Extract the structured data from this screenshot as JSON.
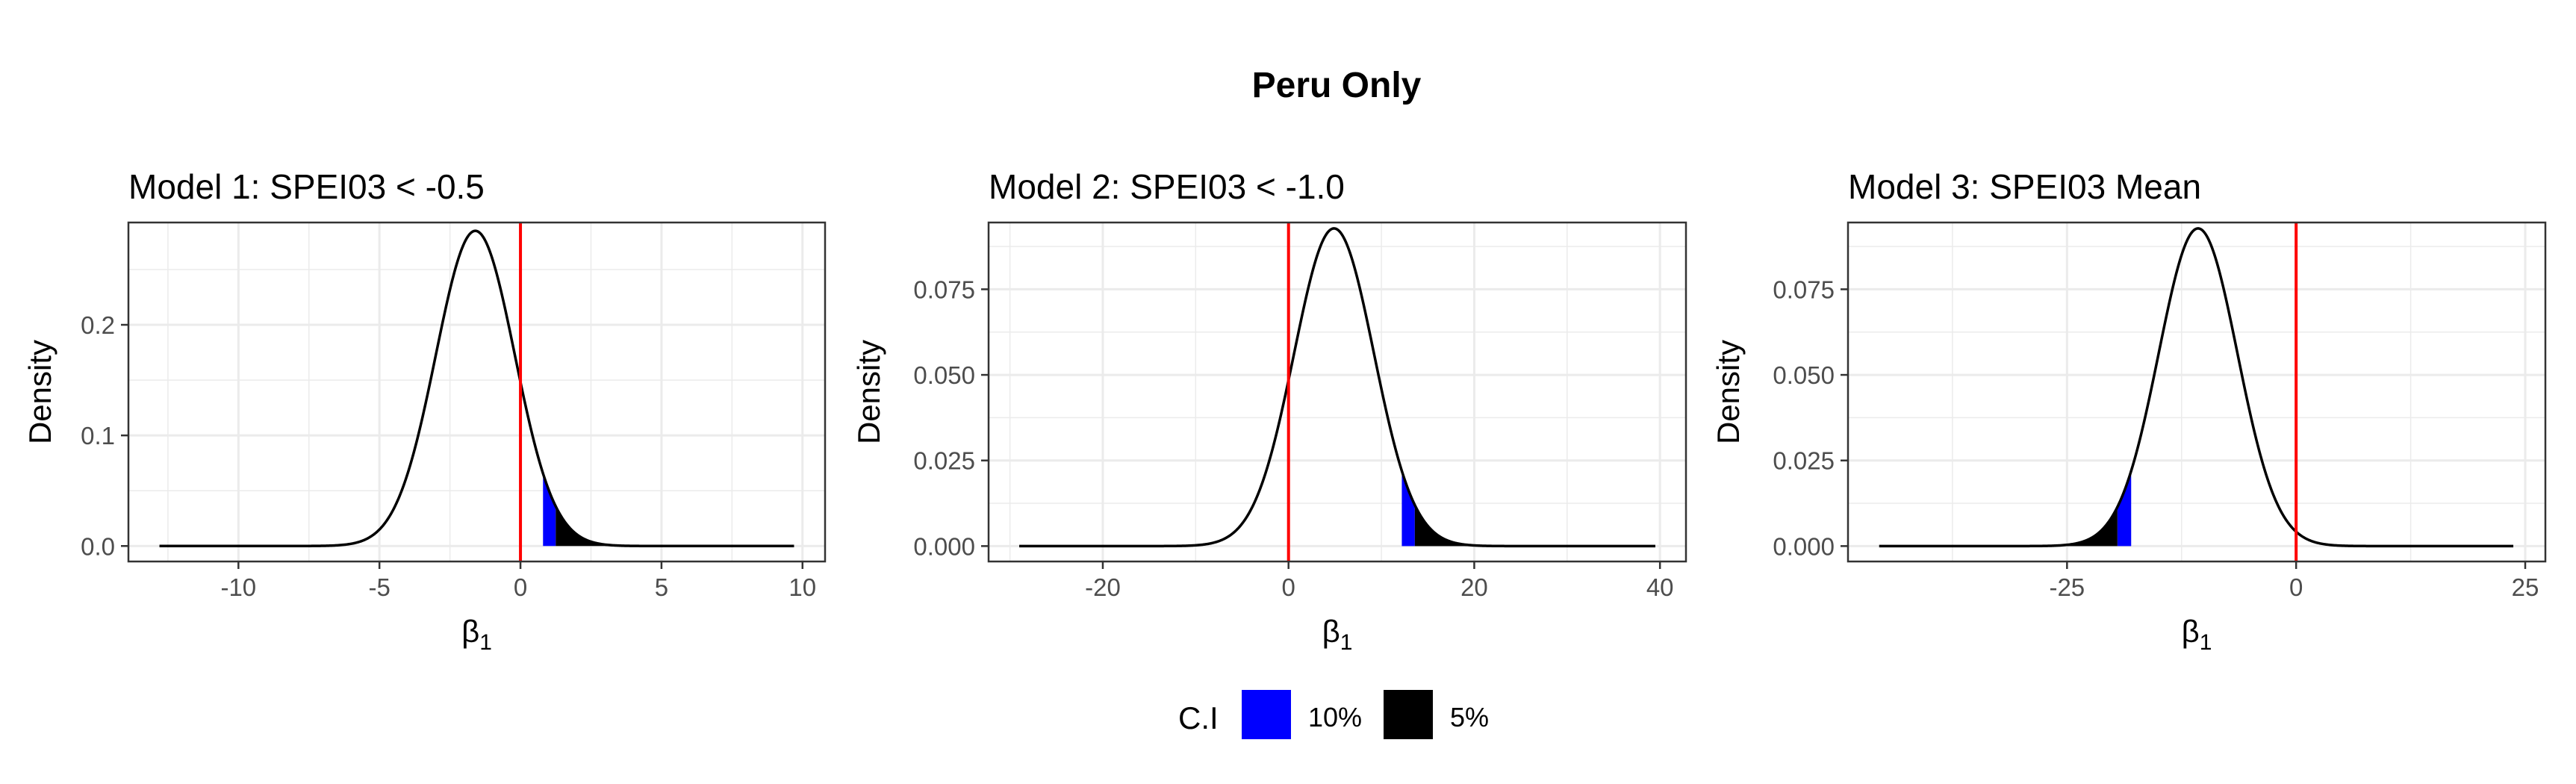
{
  "figure": {
    "title": "Peru Only"
  },
  "legend": {
    "title": "C.I",
    "entries": [
      {
        "label": "10%",
        "color": "#0000ff"
      },
      {
        "label": "5%",
        "color": "#000000"
      }
    ]
  },
  "colors": {
    "curve": "#000000",
    "reference_line": "#ff0000",
    "grid": "#ebebeb",
    "panel_border": "#333333"
  },
  "chart_data": [
    {
      "type": "area",
      "title": "Model 1: SPEI03 < -0.5",
      "xlabel_main": "β",
      "xlabel_sub": "1",
      "ylabel": "Density",
      "distribution": {
        "mean": -1.6,
        "sd": 1.4
      },
      "x_range": [
        -12.8,
        9.7
      ],
      "xlim": [
        -13.9,
        10.8
      ],
      "ylim": [
        -0.014,
        0.2925
      ],
      "xticks": [
        -10,
        -5,
        0,
        5,
        10
      ],
      "xtick_labels": [
        "-10",
        "-5",
        "0",
        "5",
        "10"
      ],
      "yticks": [
        0.0,
        0.1,
        0.2
      ],
      "ytick_labels": [
        "0.0",
        "0.1",
        "0.2"
      ],
      "reference_line_x": 0,
      "ci_10_region": [
        0.8,
        1.25
      ],
      "ci_5_region": [
        1.25,
        9.7
      ],
      "grid": true
    },
    {
      "type": "area",
      "title": "Model 2: SPEI03 < -1.0",
      "xlabel_main": "β",
      "xlabel_sub": "1",
      "ylabel": "Density",
      "distribution": {
        "mean": 4.9,
        "sd": 4.3
      },
      "x_range": [
        -29,
        39.5
      ],
      "xlim": [
        -32.3,
        42.8
      ],
      "ylim": [
        -0.0045,
        0.0945
      ],
      "xticks": [
        -20,
        0,
        20,
        40
      ],
      "xtick_labels": [
        "-20",
        "0",
        "20",
        "40"
      ],
      "yticks": [
        0.0,
        0.025,
        0.05,
        0.075
      ],
      "ytick_labels": [
        "0.000",
        "0.025",
        "0.050",
        "0.075"
      ],
      "reference_line_x": 0,
      "ci_10_region": [
        12.2,
        13.6
      ],
      "ci_5_region": [
        13.6,
        39.5
      ],
      "grid": true
    },
    {
      "type": "area",
      "title": "Model 3: SPEI03 Mean",
      "xlabel_main": "β",
      "xlabel_sub": "1",
      "ylabel": "Density",
      "distribution": {
        "mean": -10.7,
        "sd": 4.3
      },
      "x_range": [
        -45.5,
        23.7
      ],
      "xlim": [
        -48.9,
        27.2
      ],
      "ylim": [
        -0.0045,
        0.0945
      ],
      "xticks": [
        -25,
        0,
        25
      ],
      "xtick_labels": [
        "-25",
        "0",
        "25"
      ],
      "yticks": [
        0.0,
        0.025,
        0.05,
        0.075
      ],
      "ytick_labels": [
        "0.000",
        "0.025",
        "0.050",
        "0.075"
      ],
      "reference_line_x": 0,
      "ci_5_region": [
        -45.5,
        -19.5
      ],
      "ci_10_region": [
        -19.5,
        -18.0
      ],
      "grid": true
    }
  ]
}
